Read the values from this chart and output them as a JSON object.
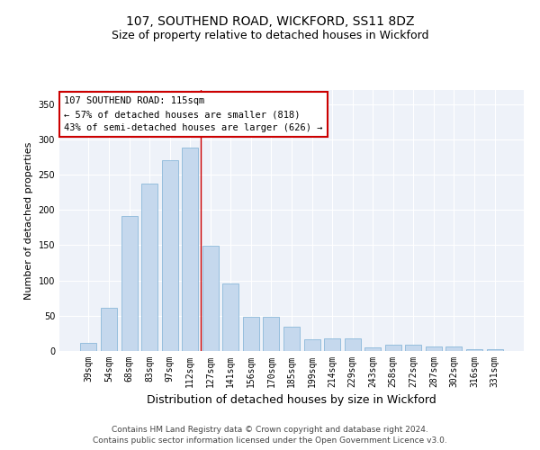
{
  "title": "107, SOUTHEND ROAD, WICKFORD, SS11 8DZ",
  "subtitle": "Size of property relative to detached houses in Wickford",
  "xlabel": "Distribution of detached houses by size in Wickford",
  "ylabel": "Number of detached properties",
  "categories": [
    "39sqm",
    "54sqm",
    "68sqm",
    "83sqm",
    "97sqm",
    "112sqm",
    "127sqm",
    "141sqm",
    "156sqm",
    "170sqm",
    "185sqm",
    "199sqm",
    "214sqm",
    "229sqm",
    "243sqm",
    "258sqm",
    "272sqm",
    "287sqm",
    "302sqm",
    "316sqm",
    "331sqm"
  ],
  "values": [
    11,
    61,
    192,
    237,
    270,
    288,
    149,
    96,
    48,
    48,
    35,
    16,
    18,
    18,
    5,
    9,
    9,
    6,
    6,
    2,
    2
  ],
  "bar_color": "#c5d8ed",
  "bar_edge_color": "#7bafd4",
  "bar_width": 0.8,
  "vline_x": 5.5,
  "vline_color": "#cc0000",
  "annotation_line1": "107 SOUTHEND ROAD: 115sqm",
  "annotation_line2": "← 57% of detached houses are smaller (818)",
  "annotation_line3": "43% of semi-detached houses are larger (626) →",
  "ylim": [
    0,
    370
  ],
  "yticks": [
    0,
    50,
    100,
    150,
    200,
    250,
    300,
    350
  ],
  "bg_color": "#eef2f9",
  "grid_color": "#ffffff",
  "footer_line1": "Contains HM Land Registry data © Crown copyright and database right 2024.",
  "footer_line2": "Contains public sector information licensed under the Open Government Licence v3.0.",
  "title_fontsize": 10,
  "subtitle_fontsize": 9,
  "xlabel_fontsize": 9,
  "ylabel_fontsize": 8,
  "tick_fontsize": 7,
  "annotation_fontsize": 7.5,
  "footer_fontsize": 6.5
}
